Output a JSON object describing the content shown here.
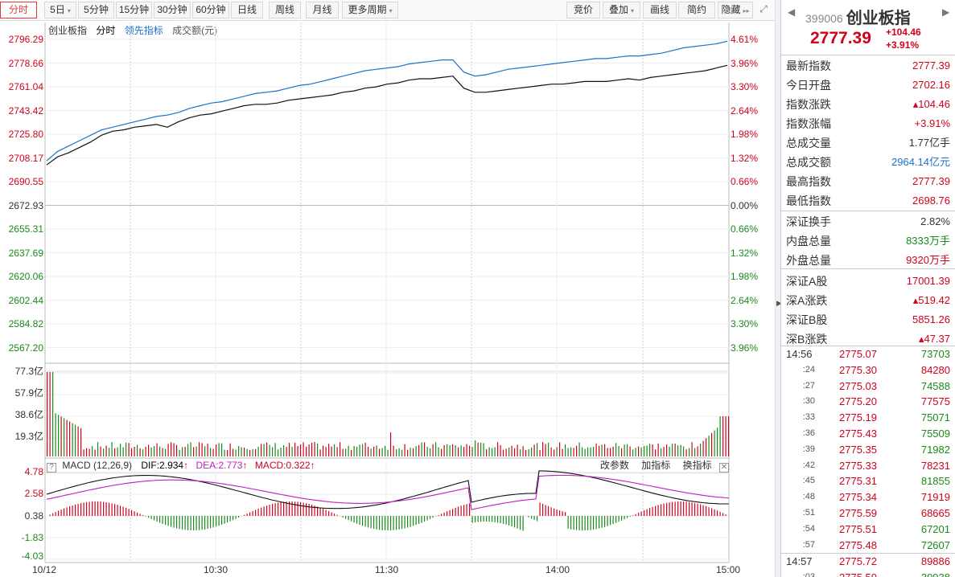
{
  "toolbar": {
    "left": [
      {
        "label": "分时",
        "active": true,
        "caret": false
      },
      {
        "label": "5日",
        "caret": true
      },
      {
        "label": "5分钟",
        "caret": false
      },
      {
        "label": "15分钟",
        "caret": false
      },
      {
        "label": "30分钟",
        "caret": false
      },
      {
        "label": "60分钟",
        "caret": false
      },
      {
        "label": "日线",
        "caret": false
      },
      {
        "label": "周线",
        "caret": false
      },
      {
        "label": "月线",
        "caret": false
      },
      {
        "label": "更多周期",
        "caret": true
      }
    ],
    "right": [
      {
        "label": "竞价",
        "caret": false
      },
      {
        "label": "叠加",
        "caret": true
      },
      {
        "label": "画线",
        "caret": false
      },
      {
        "label": "简约",
        "caret": false
      },
      {
        "label": "隐藏",
        "caret": false
      }
    ],
    "hide_arrow": "▸▸",
    "fullscreen_icon": "⤢"
  },
  "legend": {
    "index_name": "创业板指",
    "mode": "分时",
    "lead": "领先指标",
    "turnover": "成交额(元)"
  },
  "price_axis": {
    "left": [
      "2796.29",
      "2778.66",
      "2761.04",
      "2743.42",
      "2725.80",
      "2708.17",
      "2690.55",
      "2672.93",
      "2655.31",
      "2637.69",
      "2620.06",
      "2602.44",
      "2584.82",
      "2567.20"
    ],
    "right": [
      "4.61%",
      "3.96%",
      "3.30%",
      "2.64%",
      "1.98%",
      "1.32%",
      "0.66%",
      "0.00%",
      "0.66%",
      "1.32%",
      "1.98%",
      "2.64%",
      "3.30%",
      "3.96%"
    ]
  },
  "volume_axis": [
    "77.3亿",
    "57.9亿",
    "38.6亿",
    "19.3亿"
  ],
  "macd": {
    "help": "?",
    "title": "MACD (12,26,9)",
    "dif": "DIF:2.934",
    "dea": "DEA:2.773",
    "macd": "MACD:0.322",
    "arrow": "↑",
    "buttons": [
      "改参数",
      "加指标",
      "换指标"
    ],
    "close": "✕",
    "axis": [
      "4.78",
      "2.58",
      "0.38",
      "-1.83",
      "-4.03"
    ]
  },
  "x_axis": [
    "10/12",
    "10:30",
    "11:30",
    "14:00",
    "15:00"
  ],
  "quote": {
    "code": "399006",
    "name": "创业板指",
    "price": "2777.39",
    "change": "+104.46",
    "change_pct": "+3.91%",
    "nav_prev": "◀",
    "nav_next": "▶",
    "rows": [
      {
        "k": "最新指数",
        "v": "2777.39",
        "c": "red"
      },
      {
        "k": "今日开盘",
        "v": "2702.16",
        "c": "red"
      },
      {
        "k": "指数涨跌",
        "v": "▴104.46",
        "c": "red"
      },
      {
        "k": "指数涨幅",
        "v": "+3.91%",
        "c": "red"
      },
      {
        "k": "总成交量",
        "v": "1.77亿手",
        "c": "black"
      },
      {
        "k": "总成交额",
        "v": "2964.14亿元",
        "c": "blue"
      },
      {
        "k": "最高指数",
        "v": "2777.39",
        "c": "red"
      },
      {
        "k": "最低指数",
        "v": "2698.76",
        "c": "red"
      },
      {
        "k": "深证换手",
        "v": "2.82%",
        "c": "black"
      },
      {
        "k": "内盘总量",
        "v": "8333万手",
        "c": "green"
      },
      {
        "k": "外盘总量",
        "v": "9320万手",
        "c": "red"
      },
      {
        "k": "深证A股",
        "v": "17001.39",
        "c": "red"
      },
      {
        "k": "深A涨跌",
        "v": "▴519.42",
        "c": "red"
      },
      {
        "k": "深证B股",
        "v": "5851.26",
        "c": "red"
      },
      {
        "k": "深B涨跌",
        "v": "▴47.37",
        "c": "red"
      }
    ],
    "ticks": [
      {
        "t": "14:56",
        "p": "2775.07",
        "v": "73703",
        "c": "green",
        "full": true
      },
      {
        "t": ":24",
        "p": "2775.30",
        "v": "84280",
        "c": "red"
      },
      {
        "t": ":27",
        "p": "2775.03",
        "v": "74588",
        "c": "green"
      },
      {
        "t": ":30",
        "p": "2775.20",
        "v": "77575",
        "c": "red"
      },
      {
        "t": ":33",
        "p": "2775.19",
        "v": "75071",
        "c": "green"
      },
      {
        "t": ":36",
        "p": "2775.43",
        "v": "75509",
        "c": "green"
      },
      {
        "t": ":39",
        "p": "2775.35",
        "v": "71982",
        "c": "green"
      },
      {
        "t": ":42",
        "p": "2775.33",
        "v": "78231",
        "c": "red"
      },
      {
        "t": ":45",
        "p": "2775.31",
        "v": "81855",
        "c": "green"
      },
      {
        "t": ":48",
        "p": "2775.34",
        "v": "71919",
        "c": "red"
      },
      {
        "t": ":51",
        "p": "2775.59",
        "v": "68665",
        "c": "red"
      },
      {
        "t": ":54",
        "p": "2775.51",
        "v": "67201",
        "c": "green"
      },
      {
        "t": ":57",
        "p": "2775.48",
        "v": "72607",
        "c": "green"
      },
      {
        "t": "14:57",
        "p": "2775.72",
        "v": "89886",
        "c": "red",
        "full": true
      },
      {
        "t": ":03",
        "p": "2775.50",
        "v": "30938",
        "c": "green"
      }
    ]
  },
  "chart_data": {
    "type": "line",
    "series": [
      {
        "name": "创业板指",
        "values": [
          2703,
          2709,
          2712,
          2716,
          2720,
          2725,
          2728,
          2729,
          2731,
          2732,
          2733,
          2731,
          2735,
          2738,
          2740,
          2741,
          2743,
          2745,
          2747,
          2748,
          2748,
          2749,
          2751,
          2752,
          2753,
          2754,
          2755,
          2757,
          2758,
          2760,
          2761,
          2763,
          2764,
          2766,
          2767,
          2767,
          2768,
          2769,
          2760,
          2757,
          2757,
          2758,
          2759,
          2760,
          2761,
          2762,
          2763,
          2763,
          2764,
          2765,
          2765,
          2765,
          2766,
          2767,
          2766,
          2768,
          2769,
          2770,
          2771,
          2772,
          2773,
          2775,
          2777
        ]
      },
      {
        "name": "领先指标",
        "values": [
          2706,
          2713,
          2717,
          2721,
          2725,
          2729,
          2731,
          2733,
          2735,
          2737,
          2739,
          2740,
          2742,
          2745,
          2747,
          2749,
          2750,
          2752,
          2754,
          2756,
          2757,
          2758,
          2760,
          2762,
          2763,
          2765,
          2767,
          2769,
          2771,
          2773,
          2774,
          2775,
          2776,
          2778,
          2779,
          2780,
          2781,
          2781,
          2772,
          2769,
          2770,
          2772,
          2774,
          2775,
          2776,
          2777,
          2778,
          2779,
          2780,
          2781,
          2782,
          2782,
          2783,
          2784,
          2784,
          2785,
          2786,
          2788,
          2790,
          2791,
          2792,
          2793,
          2795
        ]
      }
    ],
    "ylim": [
      2567.2,
      2796.29
    ]
  }
}
